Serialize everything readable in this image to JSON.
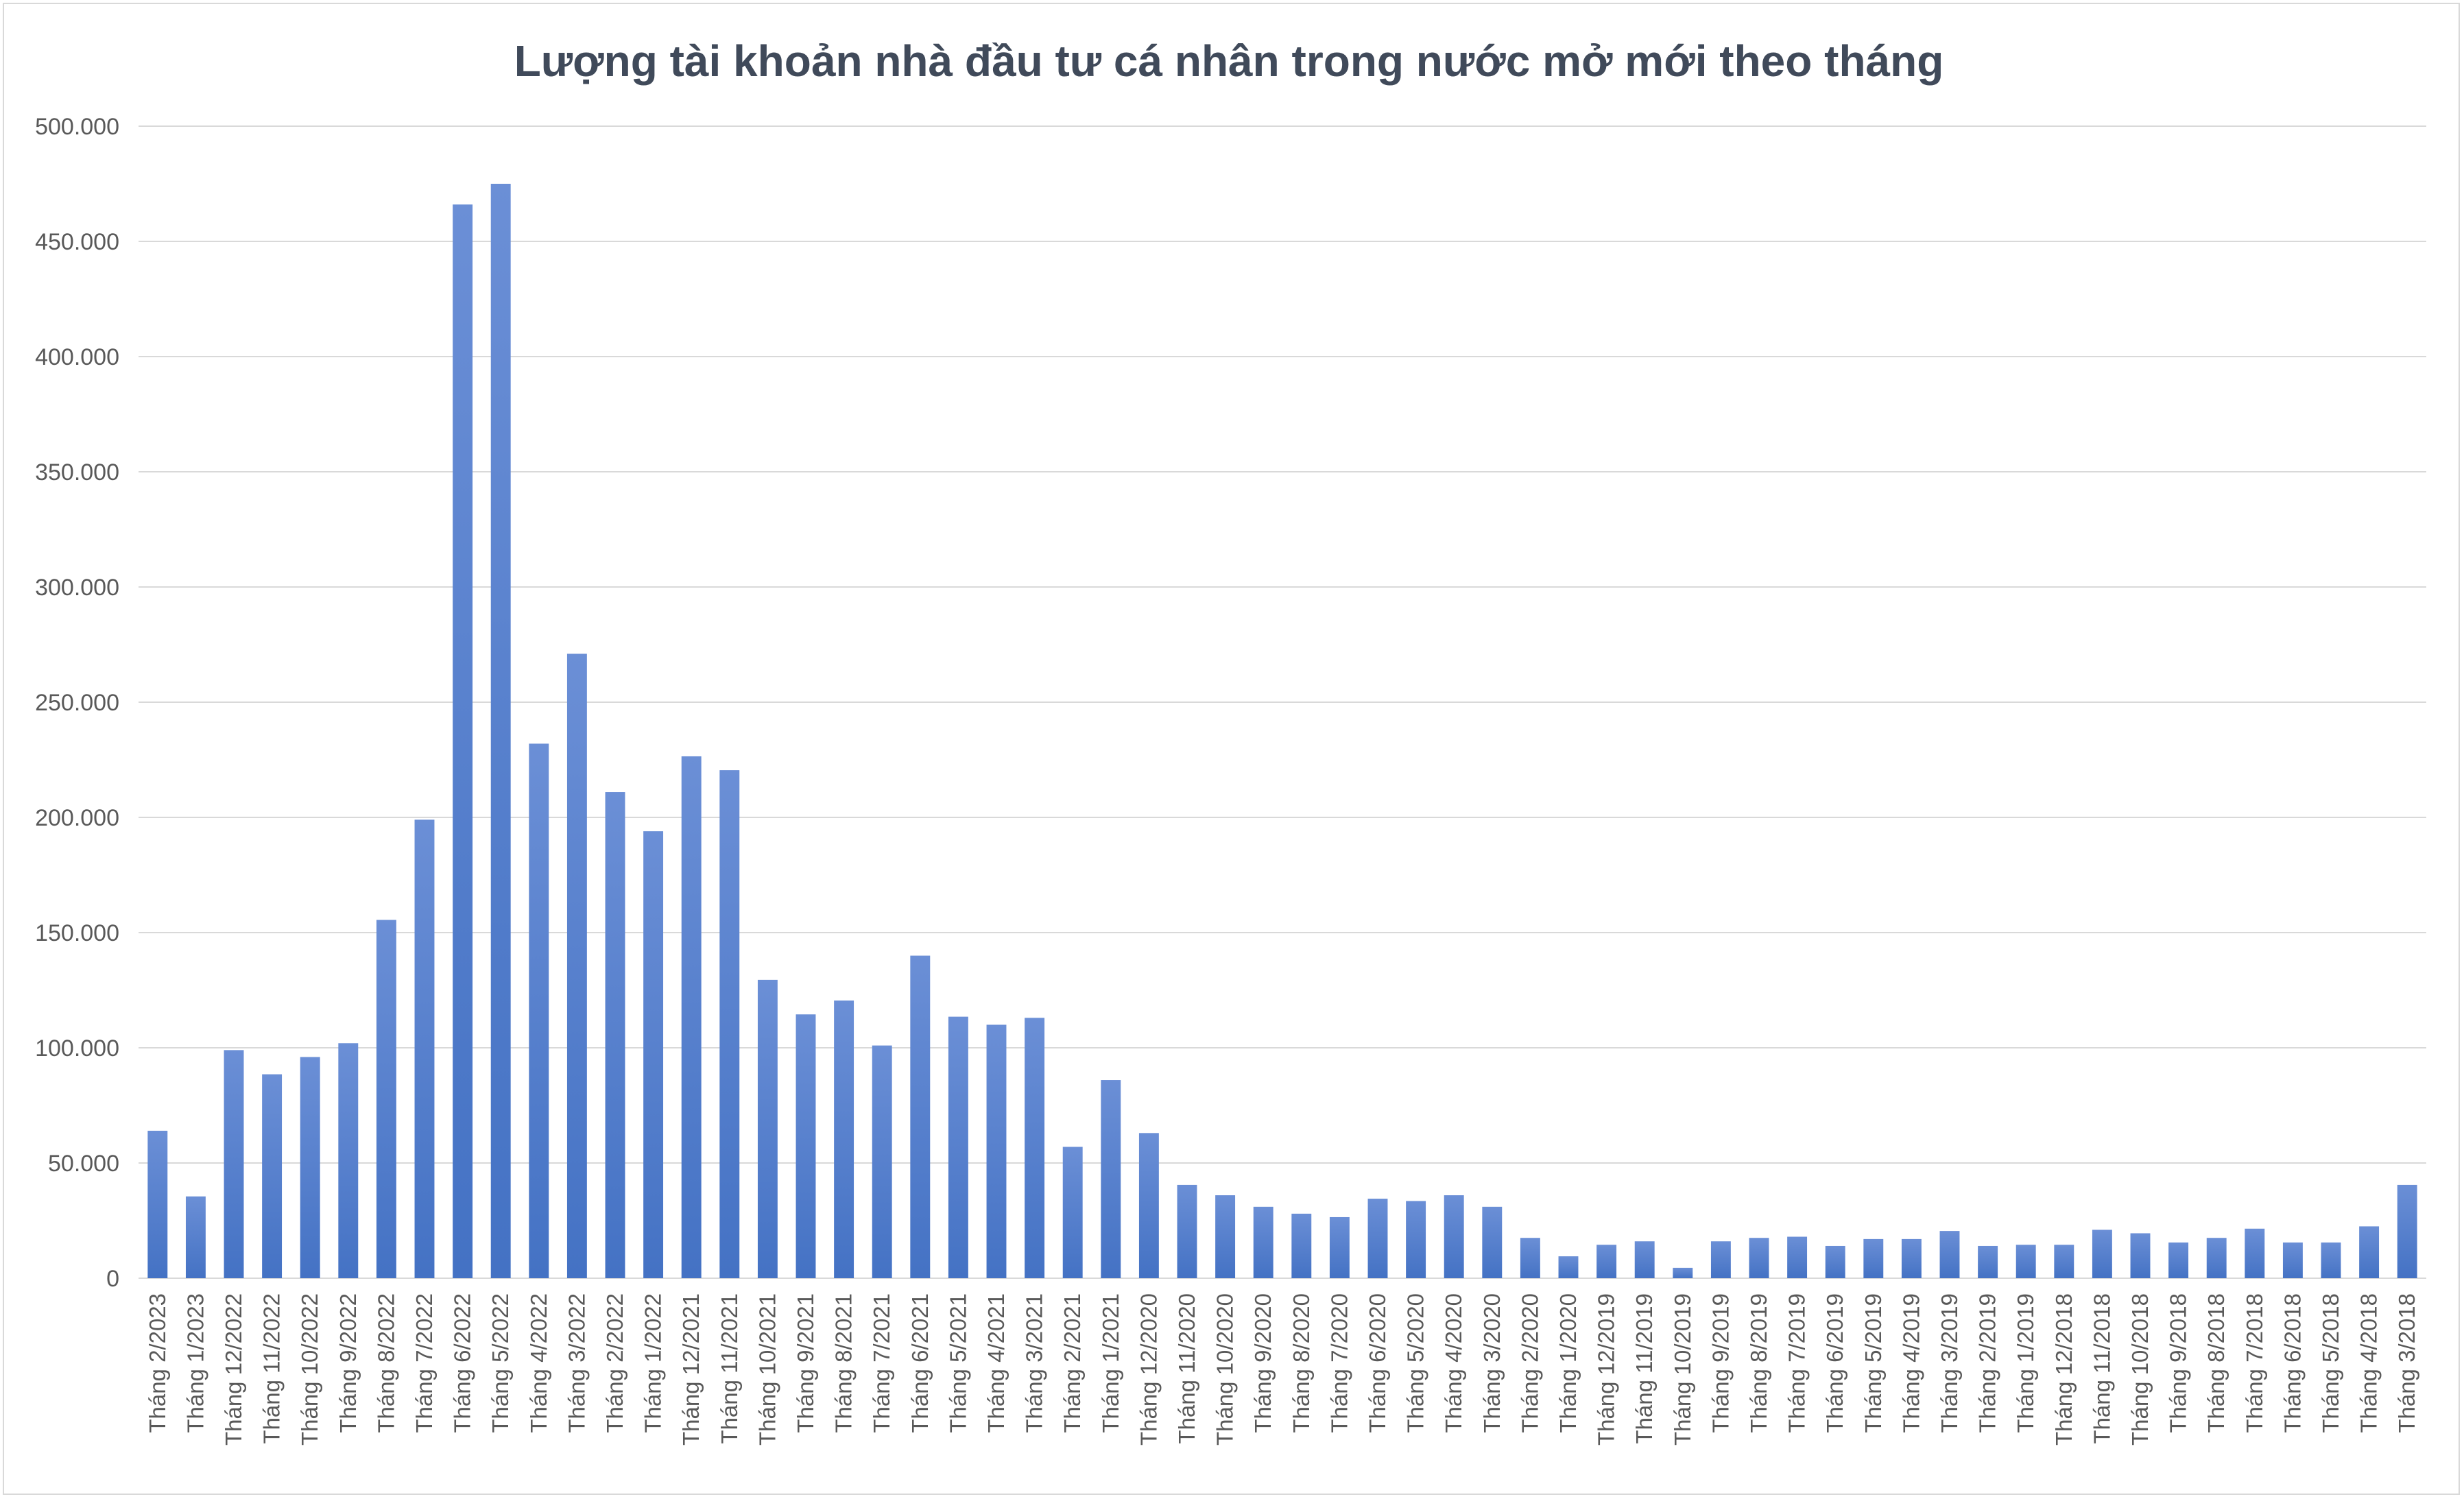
{
  "chart_data": {
    "type": "bar",
    "title": "Lượng tài khoản nhà đầu tư cá nhân trong nước mở mới theo tháng",
    "xlabel": "",
    "ylabel": "",
    "ylim": [
      0,
      500000
    ],
    "yticks": [
      0,
      50000,
      100000,
      150000,
      200000,
      250000,
      300000,
      350000,
      400000,
      450000,
      500000
    ],
    "ytick_labels": [
      "0",
      "50.000",
      "100.000",
      "150.000",
      "200.000",
      "250.000",
      "300.000",
      "350.000",
      "400.000",
      "450.000",
      "500.000"
    ],
    "grid": true,
    "legend": "none",
    "bar_color": "#4472c4",
    "categories": [
      "Tháng 2/2023",
      "Tháng 1/2023",
      "Tháng 12/2022",
      "Tháng 11/2022",
      "Tháng 10/2022",
      "Tháng 9/2022",
      "Tháng 8/2022",
      "Tháng 7/2022",
      "Tháng 6/2022",
      "Tháng 5/2022",
      "Tháng 4/2022",
      "Tháng 3/2022",
      "Tháng 2/2022",
      "Tháng 1/2022",
      "Tháng 12/2021",
      "Tháng 11/2021",
      "Tháng 10/2021",
      "Tháng 9/2021",
      "Tháng 8/2021",
      "Tháng 7/2021",
      "Tháng 6/2021",
      "Tháng 5/2021",
      "Tháng 4/2021",
      "Tháng 3/2021",
      "Tháng 2/2021",
      "Tháng 1/2021",
      "Tháng 12/2020",
      "Tháng 11/2020",
      "Tháng 10/2020",
      "Tháng 9/2020",
      "Tháng 8/2020",
      "Tháng 7/2020",
      "Tháng 6/2020",
      "Tháng 5/2020",
      "Tháng 4/2020",
      "Tháng 3/2020",
      "Tháng 2/2020",
      "Tháng 1/2020",
      "Tháng 12/2019",
      "Tháng 11/2019",
      "Tháng 10/2019",
      "Tháng 9/2019",
      "Tháng 8/2019",
      "Tháng 7/2019",
      "Tháng 6/2019",
      "Tháng 5/2019",
      "Tháng 4/2019",
      "Tháng 3/2019",
      "Tháng 2/2019",
      "Tháng 1/2019",
      "Tháng 12/2018",
      "Tháng 11/2018",
      "Tháng 10/2018",
      "Tháng 9/2018",
      "Tháng 8/2018",
      "Tháng 7/2018",
      "Tháng 6/2018",
      "Tháng 5/2018",
      "Tháng 4/2018",
      "Tháng 3/2018"
    ],
    "values": [
      64000,
      35500,
      99000,
      88500,
      96000,
      102000,
      155500,
      199000,
      466000,
      475000,
      232000,
      271000,
      211000,
      194000,
      226500,
      220500,
      129500,
      114500,
      120500,
      101000,
      140000,
      113500,
      110000,
      113000,
      57000,
      86000,
      63000,
      40500,
      36000,
      31000,
      28000,
      26500,
      34500,
      33500,
      36000,
      31000,
      17500,
      9500,
      14500,
      16000,
      4500,
      16000,
      17500,
      18000,
      14000,
      17000,
      17000,
      20500,
      14000,
      14500,
      14500,
      21000,
      19500,
      15500,
      17500,
      21500,
      15500,
      15500,
      22500,
      40500
    ]
  }
}
